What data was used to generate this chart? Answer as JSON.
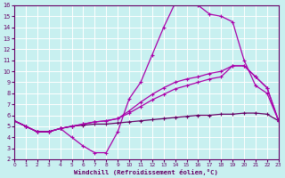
{
  "xlabel": "Windchill (Refroidissement éolien,°C)",
  "bg_color": "#c8f0f0",
  "line_color1": "#aa00aa",
  "line_color2": "#880088",
  "grid_color": "#ffffff",
  "xlim": [
    0,
    23
  ],
  "ylim": [
    2,
    16
  ],
  "xticks": [
    0,
    1,
    2,
    3,
    4,
    5,
    6,
    7,
    8,
    9,
    10,
    11,
    12,
    13,
    14,
    15,
    16,
    17,
    18,
    19,
    20,
    21,
    22,
    23
  ],
  "yticks": [
    2,
    3,
    4,
    5,
    6,
    7,
    8,
    9,
    10,
    11,
    12,
    13,
    14,
    15,
    16
  ],
  "line_dip_x": [
    0,
    1,
    2,
    3,
    4,
    5,
    6,
    7,
    8,
    9,
    10,
    11,
    12,
    13,
    14,
    15,
    16,
    17,
    18,
    19,
    20,
    21,
    22,
    23
  ],
  "line_dip_y": [
    5.5,
    5.0,
    4.5,
    4.5,
    4.8,
    4.0,
    3.2,
    2.6,
    2.6,
    4.5,
    7.5,
    9.0,
    11.5,
    14.0,
    16.2,
    16.5,
    16.0,
    15.2,
    15.0,
    14.5,
    11.0,
    8.7,
    8.0,
    5.5
  ],
  "line_mid_x": [
    0,
    1,
    2,
    3,
    4,
    5,
    6,
    7,
    8,
    9,
    10,
    11,
    12,
    13,
    14,
    15,
    16,
    17,
    18,
    19,
    20,
    21,
    22,
    23
  ],
  "line_mid_y": [
    5.5,
    5.0,
    4.5,
    4.5,
    4.8,
    5.0,
    5.2,
    5.4,
    5.5,
    5.7,
    6.2,
    6.8,
    7.4,
    7.9,
    8.4,
    8.7,
    9.0,
    9.3,
    9.5,
    10.5,
    10.5,
    9.5,
    8.5,
    5.5
  ],
  "line_low_x": [
    0,
    1,
    2,
    3,
    4,
    5,
    6,
    7,
    8,
    9,
    10,
    11,
    12,
    13,
    14,
    15,
    16,
    17,
    18,
    19,
    20,
    21,
    22,
    23
  ],
  "line_low_y": [
    5.5,
    5.0,
    4.5,
    4.5,
    4.8,
    5.0,
    5.1,
    5.2,
    5.2,
    5.3,
    5.4,
    5.5,
    5.6,
    5.7,
    5.8,
    5.9,
    6.0,
    6.0,
    6.1,
    6.1,
    6.2,
    6.2,
    6.1,
    5.5
  ],
  "line_top_x": [
    0,
    1,
    2,
    3,
    4,
    5,
    6,
    7,
    8,
    9,
    10,
    11,
    12,
    13,
    14,
    15,
    16,
    17,
    18,
    19,
    20,
    21,
    22,
    23
  ],
  "line_top_y": [
    5.5,
    5.0,
    4.5,
    4.5,
    4.8,
    5.0,
    5.2,
    5.4,
    5.5,
    5.7,
    6.4,
    7.2,
    7.9,
    8.5,
    9.0,
    9.3,
    9.5,
    9.8,
    10.0,
    10.5,
    10.5,
    9.5,
    8.5,
    5.5
  ]
}
